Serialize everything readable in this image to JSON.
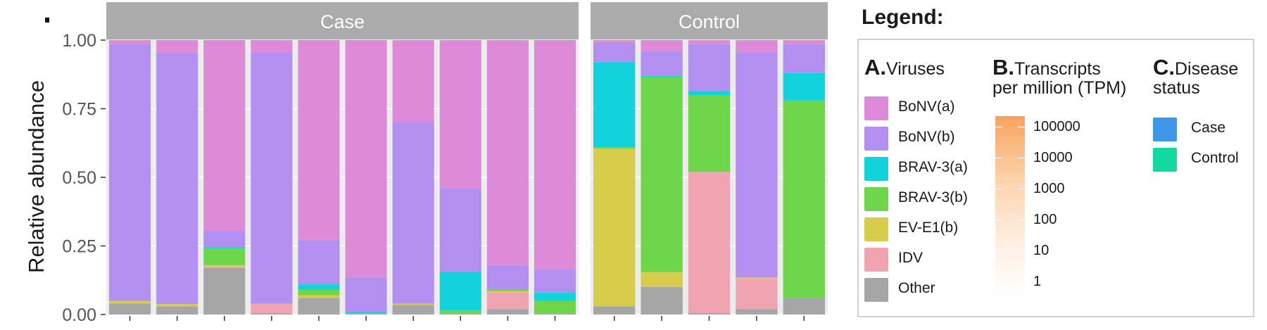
{
  "chart_data": {
    "type": "bar",
    "stacked": true,
    "ylabel": "Relative abundance",
    "ylim": [
      0,
      1
    ],
    "yticks": [
      "0.00",
      "0.25",
      "0.50",
      "0.75",
      "1.00"
    ],
    "facets": [
      "Case",
      "Control"
    ],
    "facet_sizes": [
      10,
      5
    ],
    "series": [
      {
        "name": "Other",
        "color": "#a6a6a6",
        "values": [
          0.04,
          0.03,
          0.17,
          0.005,
          0.06,
          0.005,
          0.035,
          0.005,
          0.02,
          0.005,
          0.03,
          0.1,
          0.005,
          0.02,
          0.06
        ]
      },
      {
        "name": "IDV",
        "color": "#f0a4b2",
        "values": [
          0.0,
          0.0,
          0.005,
          0.035,
          0.0,
          0.0,
          0.0,
          0.0,
          0.06,
          0.0,
          0.0,
          0.0,
          0.515,
          0.11,
          0.0
        ]
      },
      {
        "name": "EV-E1(b)",
        "color": "#d8cc4c",
        "values": [
          0.01,
          0.008,
          0.005,
          0.0,
          0.01,
          0.0,
          0.005,
          0.0,
          0.005,
          0.0,
          0.575,
          0.055,
          0.0,
          0.005,
          0.0
        ]
      },
      {
        "name": "BRAV-3(b)",
        "color": "#6ed64a",
        "values": [
          0.0,
          0.0,
          0.06,
          0.0,
          0.02,
          0.0,
          0.0,
          0.01,
          0.005,
          0.045,
          0.005,
          0.71,
          0.28,
          0.0,
          0.72
        ]
      },
      {
        "name": "BRAV-3(a)",
        "color": "#12d2dc",
        "values": [
          0.0,
          0.0,
          0.005,
          0.0,
          0.02,
          0.005,
          0.0,
          0.14,
          0.0,
          0.03,
          0.31,
          0.005,
          0.015,
          0.0,
          0.1
        ]
      },
      {
        "name": "BoNV(b)",
        "color": "#b28ff0",
        "values": [
          0.935,
          0.915,
          0.06,
          0.915,
          0.16,
          0.125,
          0.66,
          0.305,
          0.09,
          0.085,
          0.07,
          0.09,
          0.17,
          0.82,
          0.105
        ]
      },
      {
        "name": "BoNV(a)",
        "color": "#dd8ad8",
        "values": [
          0.015,
          0.047,
          0.695,
          0.045,
          0.73,
          0.865,
          0.3,
          0.54,
          0.82,
          0.835,
          0.01,
          0.04,
          0.015,
          0.045,
          0.015
        ]
      }
    ]
  },
  "legend": {
    "title": "Legend:",
    "viruses": {
      "letter": "A.",
      "title": "Viruses",
      "items": [
        {
          "label": "BoNV(a)",
          "color": "#dd8ad8"
        },
        {
          "label": "BoNV(b)",
          "color": "#b28ff0"
        },
        {
          "label": "BRAV-3(a)",
          "color": "#12d2dc"
        },
        {
          "label": "BRAV-3(b)",
          "color": "#6ed64a"
        },
        {
          "label": "EV-E1(b)",
          "color": "#d8cc4c"
        },
        {
          "label": "IDV",
          "color": "#f0a4b2"
        },
        {
          "label": "Other",
          "color": "#a6a6a6"
        }
      ]
    },
    "tpm": {
      "letter": "B.",
      "title_line1": "Transcripts",
      "title_line2": "per million (TPM)",
      "ticks": [
        "100000",
        "10000",
        "1000",
        "100",
        "10",
        "1"
      ]
    },
    "status": {
      "letter": "C.",
      "title_line1": "Disease",
      "title_line2": "status",
      "items": [
        {
          "label": "Case",
          "color": "#3f97ea"
        },
        {
          "label": "Control",
          "color": "#12d9a0"
        }
      ]
    }
  }
}
